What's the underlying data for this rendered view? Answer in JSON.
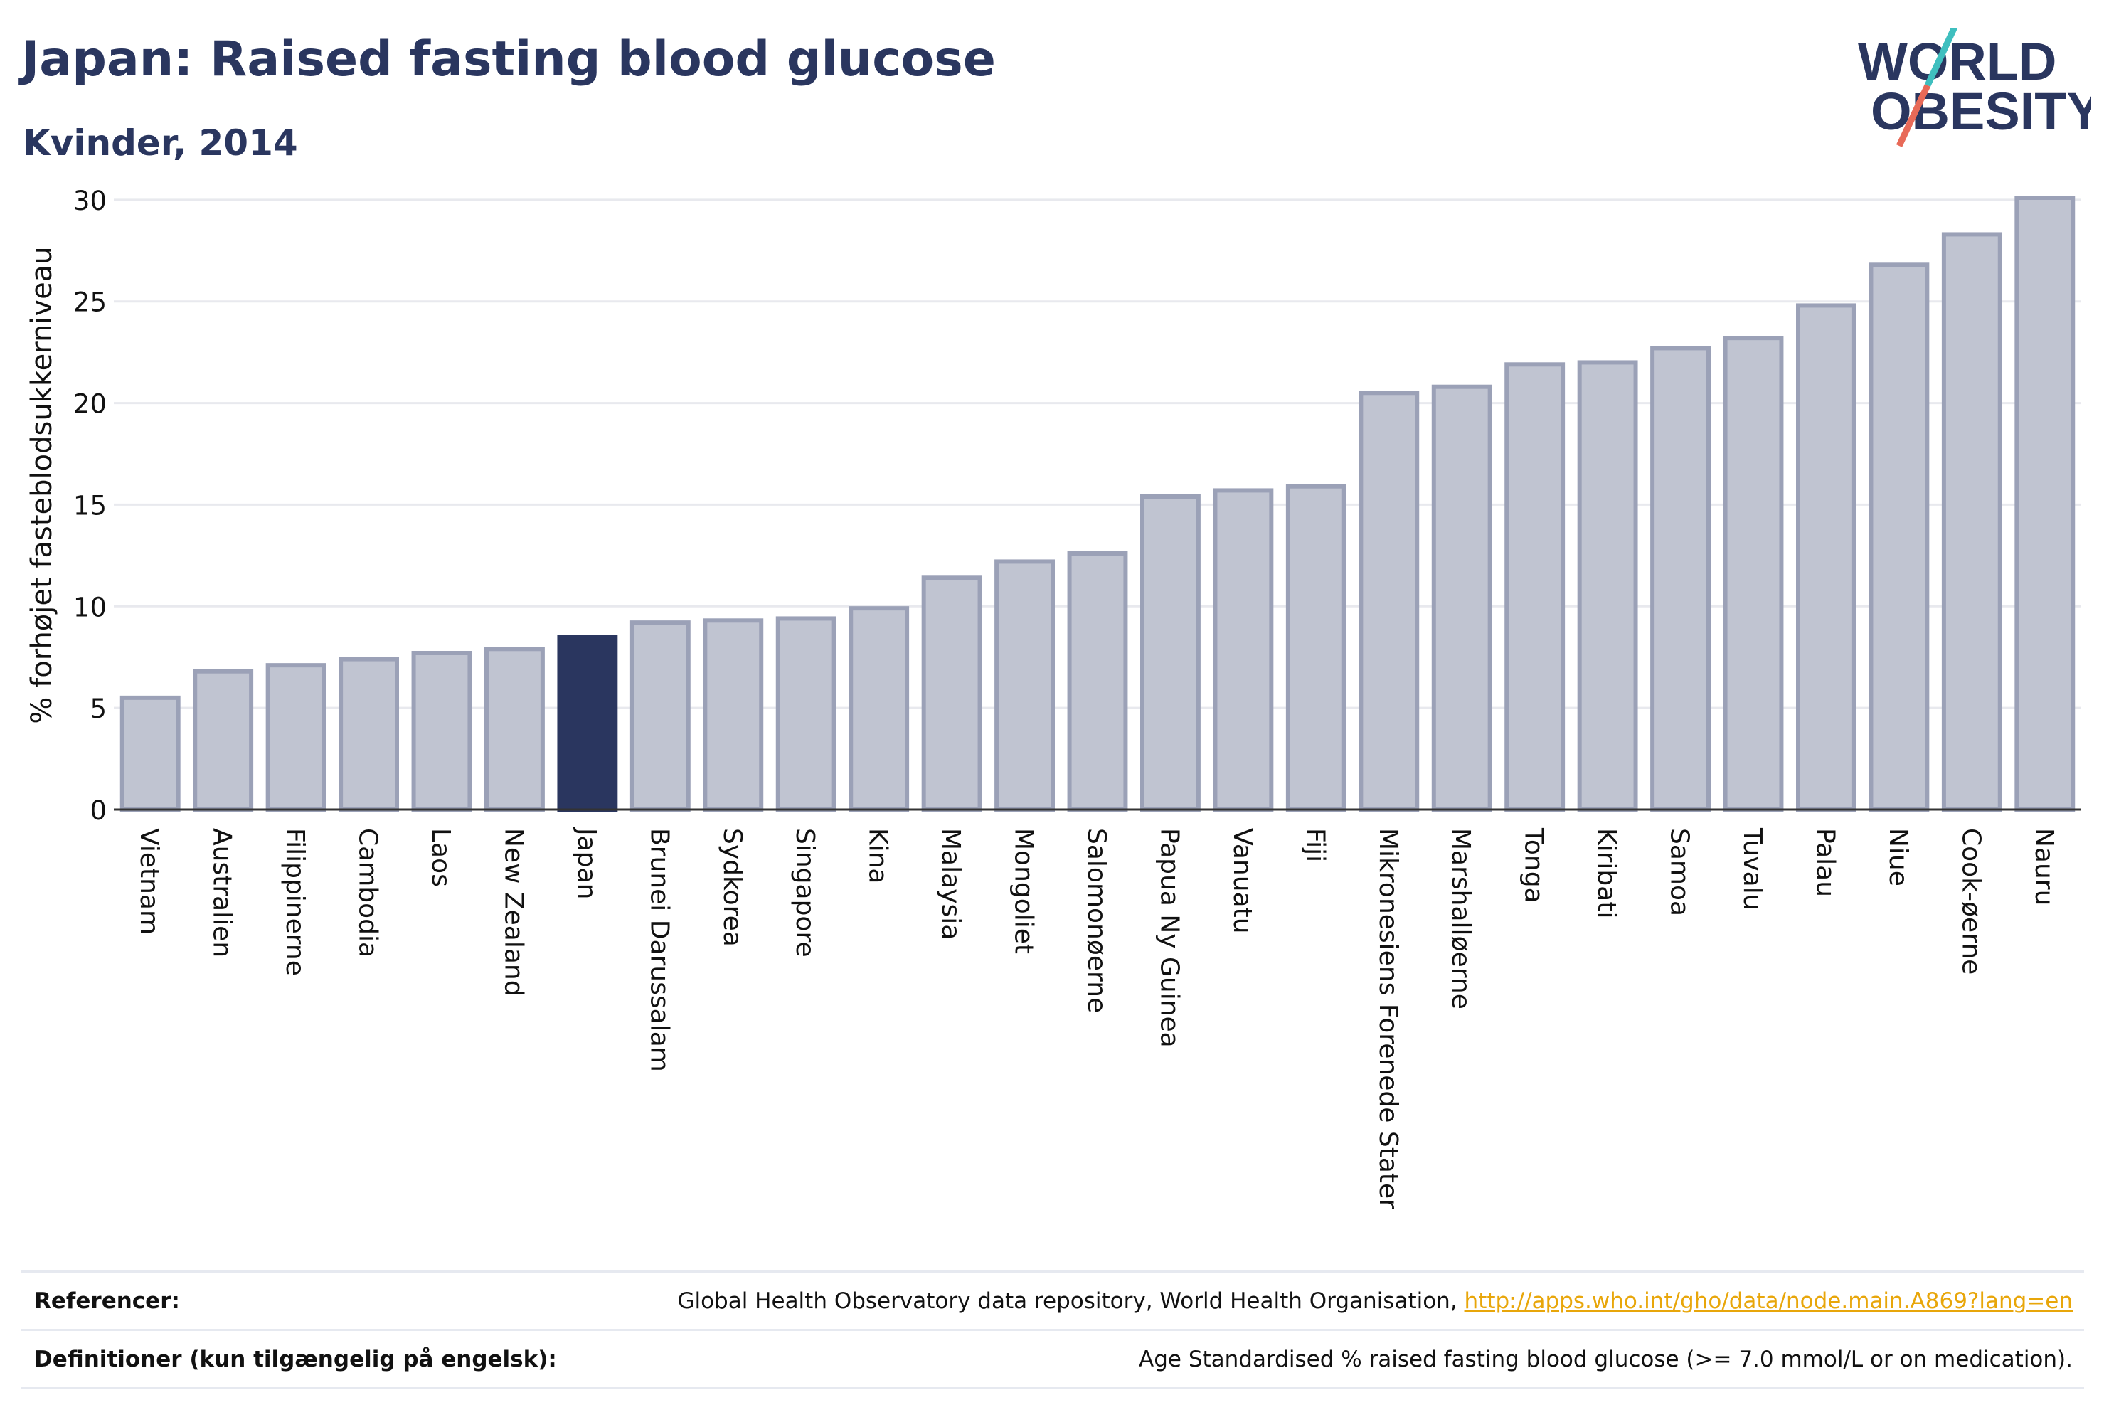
{
  "header": {
    "title": "Japan: Raised fasting blood glucose",
    "subtitle": "Kvinder, 2014",
    "logo_line1": "WORLD",
    "logo_line2": "OBESITY"
  },
  "chart_data": {
    "type": "bar",
    "title": "Japan: Raised fasting blood glucose",
    "subtitle": "Kvinder, 2014",
    "xlabel": "",
    "ylabel": "% forhøjet fasteblodsukkerniveau",
    "ylim": [
      0,
      31.5
    ],
    "yticks": [
      0,
      5,
      10,
      15,
      20,
      25,
      30
    ],
    "grid": true,
    "highlight": "Japan",
    "categories": [
      "Vietnam",
      "Australien",
      "Filippinerne",
      "Cambodia",
      "Laos",
      "New Zealand",
      "Japan",
      "Brunei Darussalam",
      "Sydkorea",
      "Singapore",
      "Kina",
      "Malaysia",
      "Mongoliet",
      "Salomonøerne",
      "Papua Ny Guinea",
      "Vanuatu",
      "Fiji",
      "Mikronesiens Forenede Stater",
      "Marshalløerne",
      "Tonga",
      "Kiribati",
      "Samoa",
      "Tuvalu",
      "Palau",
      "Niue",
      "Cook-øerne",
      "Nauru"
    ],
    "values": [
      5.5,
      6.8,
      7.1,
      7.4,
      7.7,
      7.9,
      8.5,
      9.2,
      9.3,
      9.4,
      9.9,
      11.4,
      12.2,
      12.6,
      15.4,
      15.7,
      15.9,
      20.5,
      20.8,
      21.9,
      22.0,
      22.7,
      23.2,
      24.8,
      26.8,
      28.3,
      30.1
    ]
  },
  "colors": {
    "bar_fill": "#c0c4d1",
    "bar_stroke": "#9ba1b7",
    "highlight": "#2a365f",
    "text_dark": "#2a365f",
    "grid": "#e8e9ee",
    "logo_teal": "#3fbfbf",
    "logo_coral": "#e86a58",
    "link": "#e8a60a"
  },
  "footer": {
    "references_label": "Referencer:",
    "references_text": "Global Health Observatory data repository, World Health Organisation,",
    "references_link": "http://apps.who.int/gho/data/node.main.A869?lang=en",
    "definitions_label": "Definitioner (kun tilgængelig på engelsk):",
    "definitions_text": "Age Standardised % raised fasting blood glucose (>= 7.0 mmol/L or on medication)."
  }
}
